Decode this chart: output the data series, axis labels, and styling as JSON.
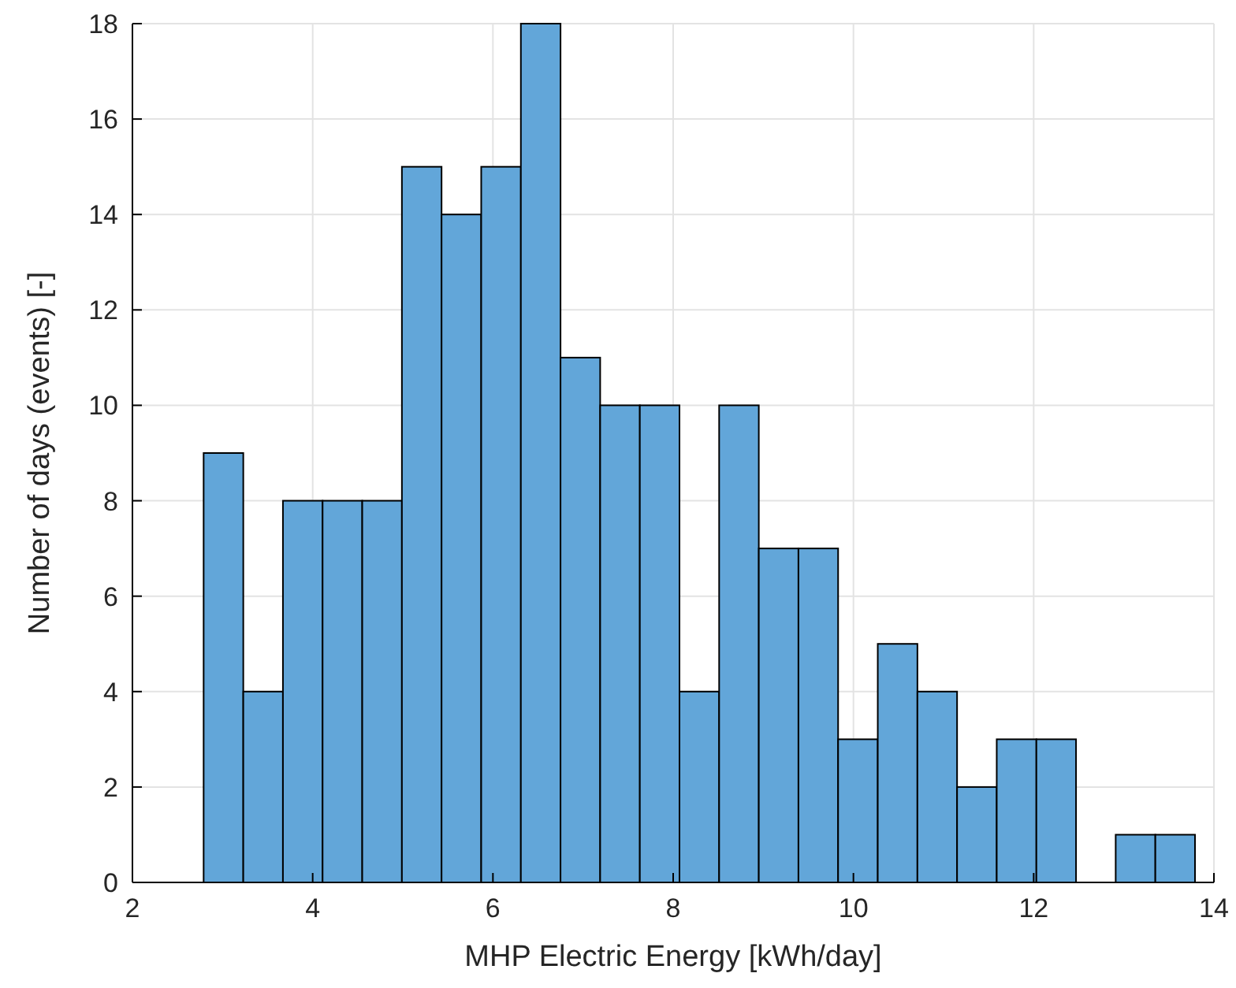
{
  "chart_data": {
    "type": "histogram",
    "xlabel": "MHP Electric Energy [kWh/day]",
    "ylabel": "Number of days (events) [-]",
    "bins": [
      2.79,
      3.23,
      3.67,
      4.11,
      4.55,
      4.99,
      5.43,
      5.87,
      6.31,
      6.75,
      7.19,
      7.63,
      8.07,
      8.51,
      8.95,
      9.39,
      9.83,
      10.27,
      10.71,
      11.15,
      11.59,
      12.03,
      12.47,
      12.91,
      13.35,
      13.79
    ],
    "values": [
      9,
      4,
      8,
      8,
      8,
      15,
      14,
      15,
      18,
      11,
      10,
      10,
      4,
      10,
      7,
      7,
      3,
      5,
      4,
      2,
      3,
      3,
      0,
      1,
      1
    ],
    "color": "#62a6d9",
    "xlim": [
      2,
      14
    ],
    "xticks": [
      2,
      4,
      6,
      8,
      10,
      12,
      14
    ],
    "ylim": [
      0,
      18
    ],
    "yticks": [
      0,
      2,
      4,
      6,
      8,
      10,
      12,
      14,
      16,
      18
    ],
    "grid": true
  }
}
